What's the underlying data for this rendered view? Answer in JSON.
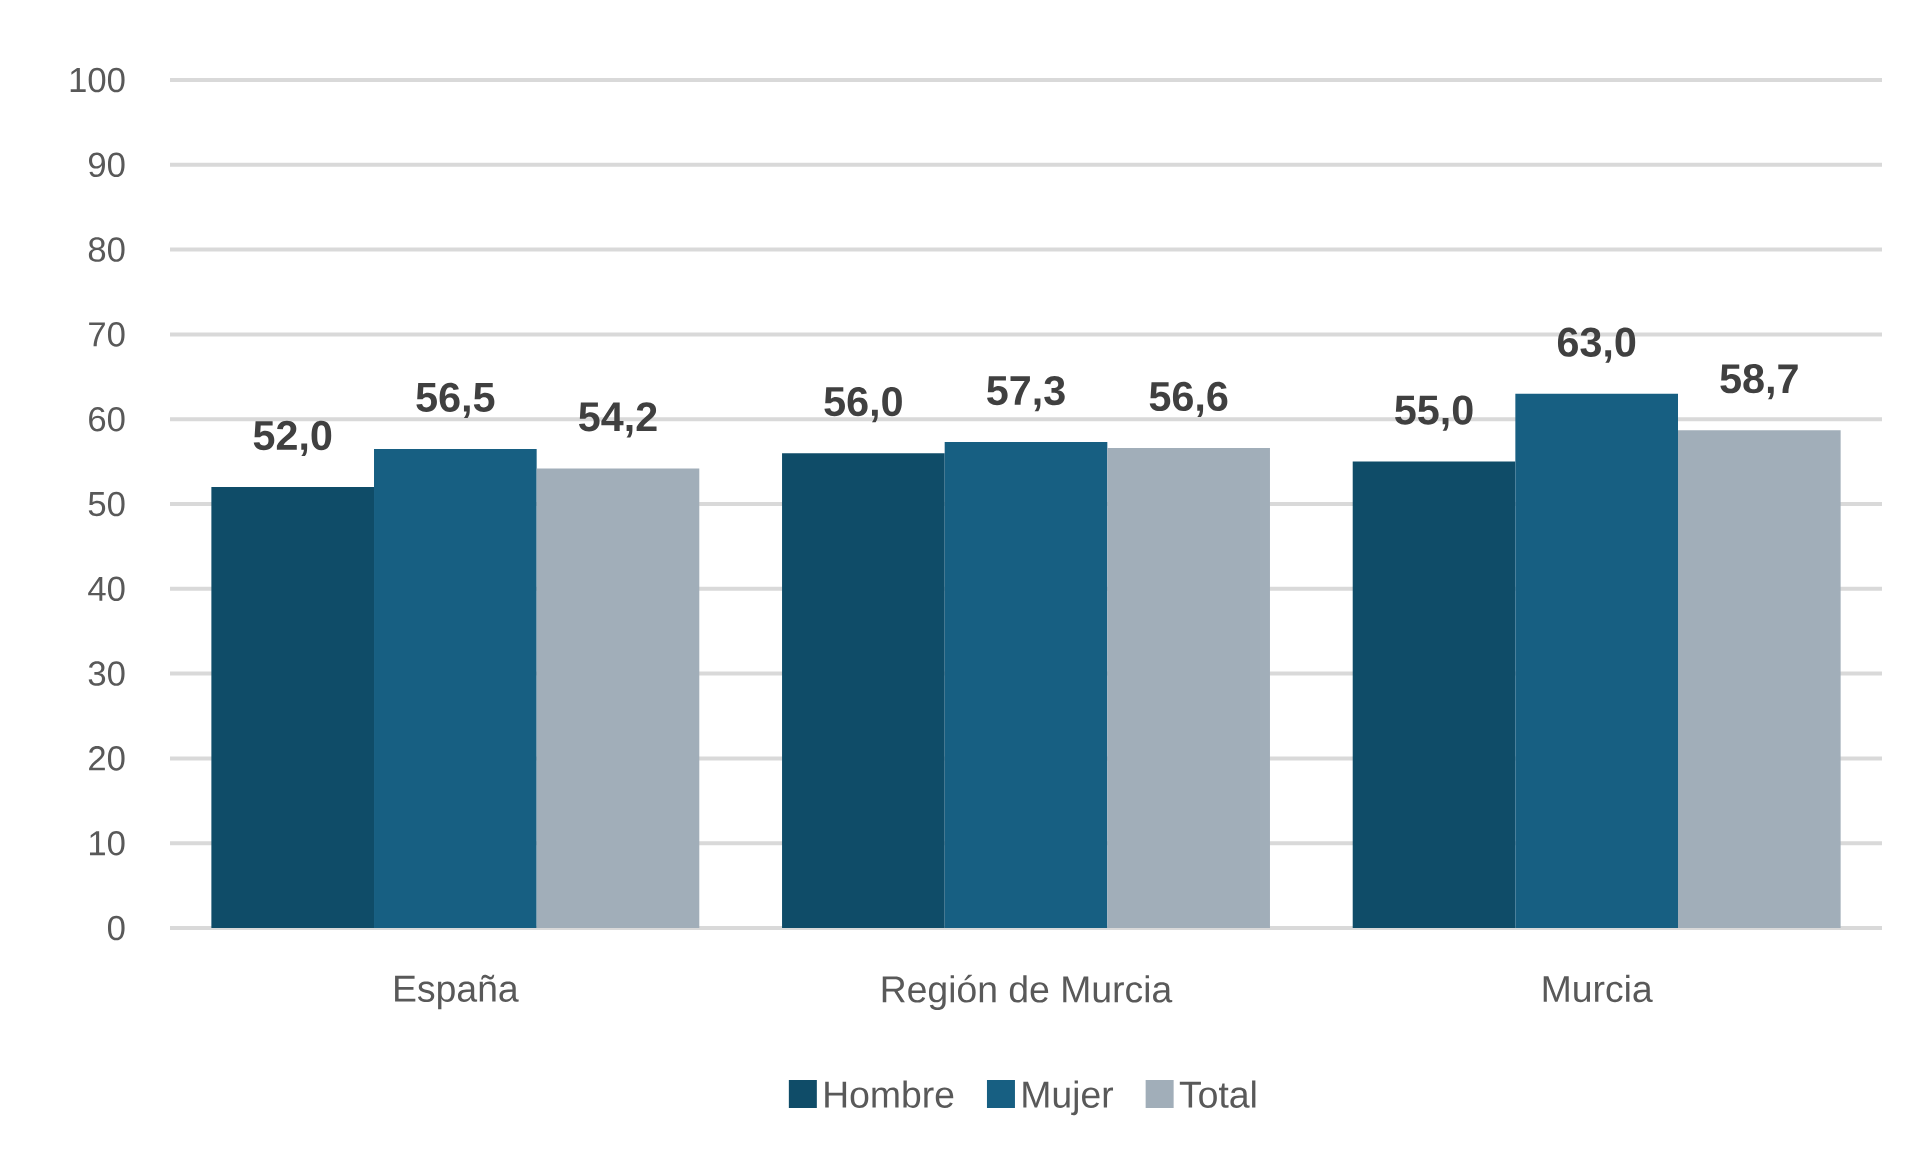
{
  "chart_data": {
    "type": "bar",
    "categories": [
      "España",
      "Región de Murcia",
      "Murcia"
    ],
    "series": [
      {
        "name": "Hombre",
        "color": "#0f4c68",
        "values": [
          52.0,
          56.0,
          55.0
        ],
        "value_labels": [
          "52,0",
          "56,0",
          "55,0"
        ]
      },
      {
        "name": "Mujer",
        "color": "#175f82",
        "values": [
          56.5,
          57.3,
          63.0
        ],
        "value_labels": [
          "56,5",
          "57,3",
          "63,0"
        ]
      },
      {
        "name": "Total",
        "color": "#a1aeb9",
        "values": [
          54.2,
          56.6,
          58.7
        ],
        "value_labels": [
          "54,2",
          "56,6",
          "58,7"
        ]
      }
    ],
    "ylim": [
      0,
      100
    ],
    "yticks": [
      0,
      10,
      20,
      30,
      40,
      50,
      60,
      70,
      80,
      90,
      100
    ],
    "grid": "y",
    "legend": "bottom"
  }
}
